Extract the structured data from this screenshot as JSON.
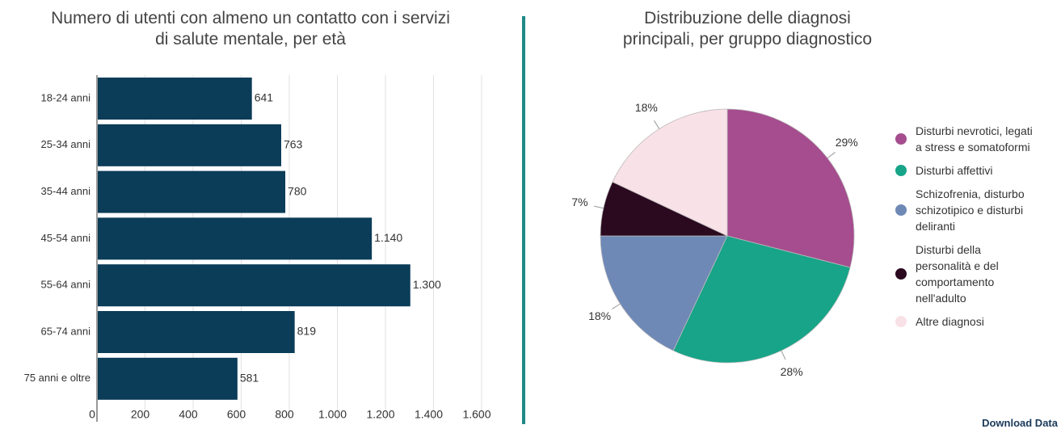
{
  "chart_data": [
    {
      "type": "hbar",
      "title": "Numero di utenti con almeno un contatto con i servizi di salute mentale, per età",
      "categories": [
        "18-24 anni",
        "25-34 anni",
        "35-44 anni",
        "45-54 anni",
        "55-64 anni",
        "65-74 anni",
        "75 anni e oltre"
      ],
      "values": [
        641,
        763,
        780,
        1140,
        1300,
        819,
        581
      ],
      "value_labels": [
        "641",
        "763",
        "780",
        "1.140",
        "1.300",
        "819",
        "581"
      ],
      "color": "#0b3c58",
      "xlim": [
        0,
        1600
      ],
      "xticks": [
        0,
        200,
        400,
        600,
        800,
        {
          "value": 1000,
          "label": "1.000"
        },
        {
          "value": 1200,
          "label": "1.200"
        },
        {
          "value": 1400,
          "label": "1.400"
        },
        {
          "value": 1600,
          "label": "1.600"
        }
      ],
      "grid": true
    },
    {
      "type": "pie",
      "title": "Distribuzione delle diagnosi principali, per gruppo diagnostico",
      "categories": [
        "Disturbi nevrotici, legati a stress e somatoformi",
        "Disturbi affettivi",
        "Schizofrenia, disturbo schizotipico e disturbi deliranti",
        "Disturbi della personalità e del comportamento nell'adulto",
        "Altre diagnosi"
      ],
      "values": [
        29,
        28,
        18,
        7,
        18
      ],
      "value_labels": [
        "29%",
        "28%",
        "18%",
        "7%",
        "18%"
      ],
      "colors": [
        "#a54d8e",
        "#17a488",
        "#6f89b6",
        "#2b0a20",
        "#f8e1e7"
      ],
      "legend": "right"
    }
  ],
  "download_label": "Download Data"
}
